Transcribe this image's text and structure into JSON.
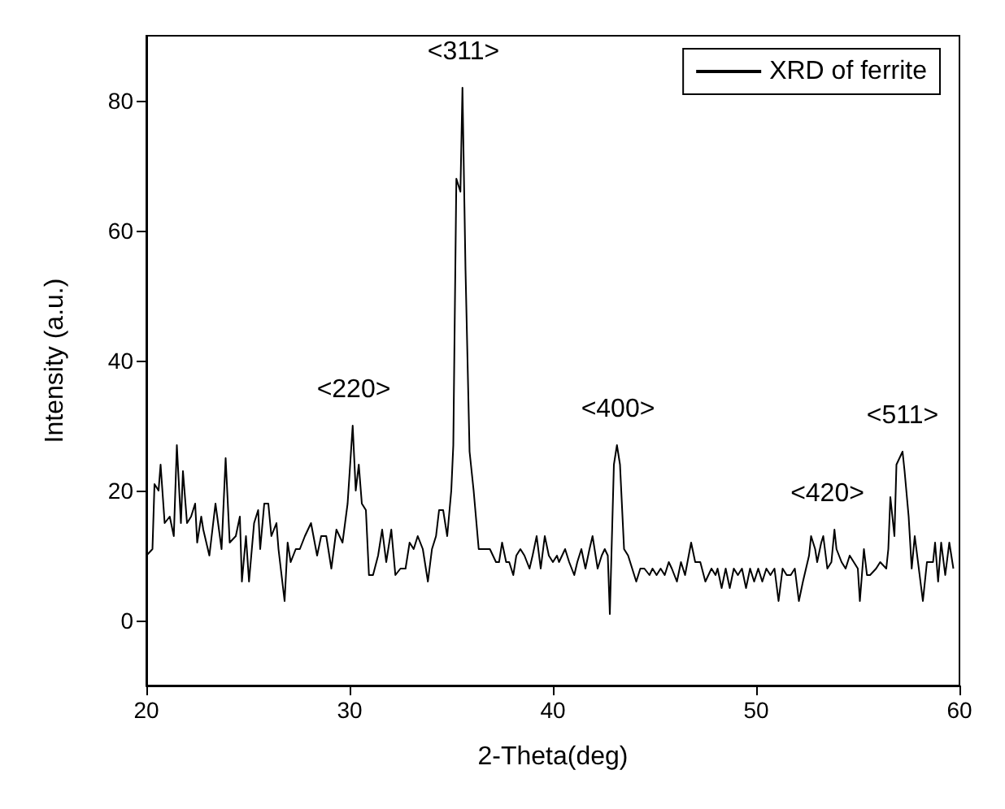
{
  "chart_data": {
    "type": "line",
    "xlabel": "2-Theta(deg)",
    "ylabel": "Intensity (a.u.)",
    "xlim": [
      20,
      60
    ],
    "xticks": [
      20,
      30,
      40,
      50,
      60
    ],
    "ylim": [
      -10,
      90
    ],
    "yticks": [
      0,
      20,
      40,
      60,
      80
    ],
    "grid": false,
    "legend": "top right",
    "marker": "none",
    "line_style": "solid",
    "annotations": [
      {
        "text": "<220>",
        "x": 30.2,
        "y": 30
      },
      {
        "text": "<311>",
        "x": 35.6,
        "y": 82
      },
      {
        "text": "<400>",
        "x": 43.2,
        "y": 27
      },
      {
        "text": "<420>",
        "x": 53.5,
        "y": 14
      },
      {
        "text": "<511>",
        "x": 57.2,
        "y": 26
      }
    ],
    "series": [
      {
        "name": "XRD of ferrite",
        "color": "#000000",
        "x": [
          20.0,
          20.3,
          20.4,
          20.6,
          20.7,
          20.9,
          21.15,
          21.35,
          21.5,
          21.7,
          21.8,
          22.0,
          22.2,
          22.4,
          22.5,
          22.7,
          22.8,
          23.1,
          23.4,
          23.7,
          23.9,
          24.1,
          24.4,
          24.6,
          24.7,
          24.9,
          25.05,
          25.3,
          25.5,
          25.6,
          25.8,
          26.0,
          26.15,
          26.4,
          26.5,
          26.8,
          26.95,
          27.1,
          27.35,
          27.55,
          27.8,
          28.1,
          28.4,
          28.6,
          28.85,
          29.1,
          29.35,
          29.65,
          29.9,
          30.15,
          30.3,
          30.45,
          30.6,
          30.8,
          30.95,
          31.15,
          31.4,
          31.6,
          31.8,
          32.05,
          32.25,
          32.5,
          32.75,
          32.95,
          33.15,
          33.35,
          33.6,
          33.85,
          34.05,
          34.25,
          34.4,
          34.6,
          34.8,
          35.0,
          35.1,
          35.25,
          35.45,
          35.55,
          35.7,
          35.9,
          36.1,
          36.35,
          36.55,
          36.7,
          36.9,
          37.2,
          37.35,
          37.5,
          37.7,
          37.85,
          38.05,
          38.2,
          38.4,
          38.6,
          38.85,
          39.0,
          39.2,
          39.4,
          39.6,
          39.8,
          40.0,
          40.2,
          40.3,
          40.6,
          40.8,
          41.05,
          41.2,
          41.4,
          41.6,
          41.8,
          41.95,
          42.2,
          42.4,
          42.55,
          42.7,
          42.8,
          43.0,
          43.15,
          43.3,
          43.5,
          43.7,
          44.1,
          44.3,
          44.5,
          44.75,
          44.9,
          45.1,
          45.3,
          45.5,
          45.7,
          45.85,
          46.1,
          46.3,
          46.5,
          46.8,
          47.0,
          47.25,
          47.5,
          47.8,
          48.0,
          48.1,
          48.3,
          48.5,
          48.7,
          48.9,
          49.1,
          49.3,
          49.5,
          49.7,
          49.9,
          50.1,
          50.3,
          50.5,
          50.7,
          50.9,
          51.1,
          51.3,
          51.5,
          51.7,
          51.9,
          52.1,
          52.3,
          52.6,
          52.7,
          52.9,
          53.0,
          53.2,
          53.3,
          53.5,
          53.7,
          53.85,
          53.95,
          54.2,
          54.4,
          54.6,
          54.8,
          55.0,
          55.1,
          55.3,
          55.45,
          55.6,
          55.9,
          56.1,
          56.4,
          56.5,
          56.6,
          56.8,
          56.9,
          57.2,
          57.3,
          57.5,
          57.65,
          57.8,
          58.0,
          58.2,
          58.4,
          58.7,
          58.8,
          58.95,
          59.1,
          59.3,
          59.5,
          59.7
        ],
        "values": [
          10,
          11,
          21,
          20,
          24,
          15,
          16,
          13,
          27,
          15,
          23,
          15,
          16,
          18,
          12,
          16,
          14,
          10,
          18,
          11,
          25,
          12,
          13,
          16,
          6,
          13,
          6,
          15,
          17,
          11,
          18,
          18,
          13,
          15,
          11,
          3,
          12,
          9,
          11,
          11,
          13,
          15,
          10,
          13,
          13,
          8,
          14,
          12,
          18,
          30,
          20,
          24,
          18,
          17,
          7,
          7,
          10,
          14,
          9,
          14,
          7,
          8,
          8,
          12,
          11,
          13,
          11,
          6,
          11,
          13,
          17,
          17,
          13,
          20,
          27,
          68,
          66,
          82,
          54,
          26,
          20,
          11,
          11,
          11,
          11,
          9,
          9,
          12,
          9,
          9,
          7,
          10,
          11,
          10,
          8,
          10,
          13,
          8,
          13,
          10,
          9,
          10,
          9,
          11,
          9,
          7,
          9,
          11,
          8,
          11,
          13,
          8,
          10,
          11,
          10,
          1,
          24,
          27,
          24,
          11,
          10,
          6,
          8,
          8,
          7,
          8,
          7,
          8,
          7,
          9,
          8,
          6,
          9,
          7,
          12,
          9,
          9,
          6,
          8,
          7,
          8,
          5,
          8,
          5,
          8,
          7,
          8,
          5,
          8,
          6,
          8,
          6,
          8,
          7,
          8,
          3,
          8,
          7,
          7,
          8,
          3,
          6,
          10,
          13,
          11,
          9,
          12,
          13,
          8,
          9,
          14,
          11,
          9,
          8,
          10,
          9,
          8,
          3,
          11,
          7,
          7,
          8,
          9,
          8,
          11,
          19,
          13,
          24,
          26,
          23,
          16,
          8,
          13,
          8,
          3,
          9,
          9,
          12,
          6,
          12,
          7,
          12,
          8
        ]
      }
    ]
  }
}
